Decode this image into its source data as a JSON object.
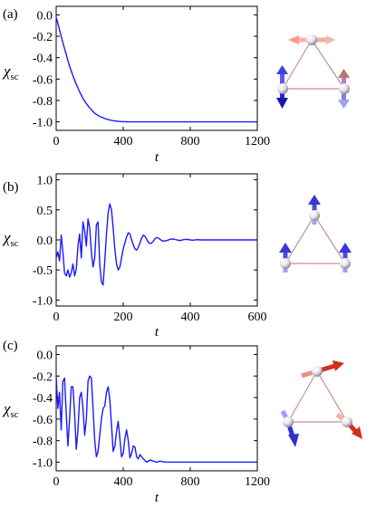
{
  "colors": {
    "curve": "#1a1aff",
    "axis": "#000000",
    "bond": "#c8908c",
    "atom_light": "#ffffff",
    "atom_dark": "#a0a0a8",
    "spin_blue": "#3030d0",
    "spin_blue_light": "#9aa0ff",
    "spin_red": "#d03020",
    "spin_red_light": "#ffb0a0"
  },
  "chart_data": [
    {
      "type": "line",
      "panel_label": "(a)",
      "xlabel": "t",
      "ylabel_main": "χ",
      "ylabel_sub": "sc",
      "xlim": [
        0,
        1200
      ],
      "ylim": [
        -1.08,
        0.08
      ],
      "xticks": [
        0,
        400,
        800,
        1200
      ],
      "xtick_labels": [
        "0",
        "400",
        "800",
        "1200"
      ],
      "yticks": [
        0.0,
        -0.2,
        -0.4,
        -0.6,
        -0.8,
        -1.0
      ],
      "ytick_labels": [
        "0.0",
        "-0.2",
        "-0.4",
        "-0.6",
        "-0.8",
        "-1.0"
      ],
      "grid": false,
      "series": [
        {
          "x": [
            0,
            20,
            40,
            60,
            80,
            100,
            120,
            140,
            160,
            180,
            200,
            230,
            260,
            300,
            340,
            380,
            420,
            480,
            600,
            800,
            1000,
            1200
          ],
          "y": [
            -0.02,
            -0.14,
            -0.26,
            -0.37,
            -0.48,
            -0.57,
            -0.65,
            -0.72,
            -0.78,
            -0.83,
            -0.87,
            -0.92,
            -0.95,
            -0.975,
            -0.99,
            -0.997,
            -1.0,
            -1.0,
            -1.0,
            -1.0,
            -1.0,
            -1.0
          ]
        }
      ]
    },
    {
      "type": "line",
      "panel_label": "(b)",
      "xlabel": "t",
      "ylabel_main": "χ",
      "ylabel_sub": "sc",
      "xlim": [
        0,
        600
      ],
      "ylim": [
        -1.1,
        1.1
      ],
      "xticks": [
        0,
        200,
        400,
        600
      ],
      "xtick_labels": [
        "0",
        "200",
        "400",
        "600"
      ],
      "yticks": [
        1.0,
        0.5,
        0.0,
        -0.5,
        -1.0
      ],
      "ytick_labels": [
        "1.0",
        "0.5",
        "0.0",
        "-0.5",
        "-1.0"
      ],
      "grid": false,
      "series": [
        {
          "x": [
            0,
            5,
            10,
            15,
            20,
            25,
            30,
            35,
            40,
            45,
            50,
            55,
            60,
            65,
            70,
            75,
            80,
            85,
            90,
            95,
            100,
            105,
            110,
            115,
            120,
            125,
            130,
            135,
            140,
            145,
            150,
            155,
            160,
            165,
            170,
            175,
            180,
            185,
            190,
            195,
            200,
            205,
            210,
            215,
            220,
            225,
            230,
            235,
            240,
            245,
            250,
            255,
            260,
            265,
            270,
            275,
            280,
            285,
            290,
            295,
            300,
            305,
            310,
            315,
            320,
            330,
            340,
            350,
            360,
            370,
            380,
            390,
            400,
            410,
            420,
            430,
            440,
            450,
            460,
            470,
            480,
            500,
            530,
            560,
            600
          ],
          "y": [
            -0.3,
            -0.2,
            -0.35,
            0.08,
            -0.2,
            -0.55,
            -0.6,
            -0.5,
            -0.62,
            -0.55,
            -0.4,
            -0.6,
            -0.48,
            -0.1,
            0.1,
            -0.3,
            0.3,
            0.15,
            -0.1,
            0.35,
            0.2,
            -0.2,
            -0.45,
            -0.3,
            0.25,
            0.3,
            -0.4,
            -0.7,
            -0.75,
            -0.35,
            0.1,
            0.45,
            0.6,
            0.5,
            0.2,
            -0.15,
            -0.4,
            -0.5,
            -0.45,
            -0.3,
            -0.15,
            -0.05,
            0.05,
            0.12,
            0.1,
            0.0,
            -0.08,
            -0.15,
            -0.17,
            -0.12,
            -0.05,
            0.03,
            0.08,
            0.06,
            0.01,
            -0.04,
            -0.06,
            -0.05,
            -0.02,
            0.02,
            0.04,
            0.03,
            0.01,
            -0.01,
            -0.02,
            -0.01,
            0.01,
            0.015,
            0.0,
            -0.01,
            0.005,
            0.01,
            0.0,
            -0.005,
            0.005,
            0.0,
            0.0,
            0.0,
            0.0,
            0.0,
            0.0,
            0.0,
            0.0,
            0.0,
            0.0
          ]
        }
      ]
    },
    {
      "type": "line",
      "panel_label": "(c)",
      "xlabel": "t",
      "ylabel_main": "χ",
      "ylabel_sub": "sc",
      "xlim": [
        0,
        1200
      ],
      "ylim": [
        -1.08,
        0.08
      ],
      "xticks": [
        0,
        400,
        800,
        1200
      ],
      "xtick_labels": [
        "0",
        "400",
        "800",
        "1200"
      ],
      "yticks": [
        0.0,
        -0.2,
        -0.4,
        -0.6,
        -0.8,
        -1.0
      ],
      "ytick_labels": [
        "0.0",
        "-0.2",
        "-0.4",
        "-0.6",
        "-0.8",
        "-1.0"
      ],
      "grid": false,
      "series": [
        {
          "x": [
            0,
            10,
            20,
            30,
            40,
            50,
            60,
            70,
            80,
            90,
            100,
            110,
            120,
            130,
            140,
            150,
            160,
            170,
            180,
            190,
            200,
            210,
            220,
            230,
            240,
            250,
            260,
            270,
            280,
            290,
            300,
            310,
            320,
            330,
            340,
            350,
            360,
            370,
            380,
            390,
            400,
            410,
            420,
            430,
            440,
            450,
            460,
            470,
            480,
            490,
            500,
            520,
            540,
            560,
            580,
            600,
            620,
            650,
            700,
            750,
            800,
            900,
            1000,
            1100,
            1200
          ],
          "y": [
            -0.2,
            -0.5,
            -0.35,
            -0.7,
            -0.25,
            -0.22,
            -0.55,
            -0.85,
            -0.6,
            -0.3,
            -0.3,
            -0.55,
            -0.88,
            -0.7,
            -0.4,
            -0.35,
            -0.5,
            -0.75,
            -0.6,
            -0.25,
            -0.2,
            -0.22,
            -0.5,
            -0.8,
            -0.95,
            -0.9,
            -0.75,
            -0.6,
            -0.5,
            -0.48,
            -0.35,
            -0.3,
            -0.42,
            -0.65,
            -0.9,
            -0.85,
            -0.72,
            -0.62,
            -0.78,
            -0.95,
            -0.92,
            -0.78,
            -0.7,
            -0.8,
            -0.96,
            -0.92,
            -0.85,
            -0.86,
            -0.95,
            -0.97,
            -0.93,
            -0.97,
            -1.0,
            -0.98,
            -0.99,
            -1.0,
            -0.99,
            -1.0,
            -1.0,
            -1.0,
            -1.0,
            -1.0,
            -1.0,
            -1.0,
            -1.0
          ]
        }
      ]
    }
  ]
}
